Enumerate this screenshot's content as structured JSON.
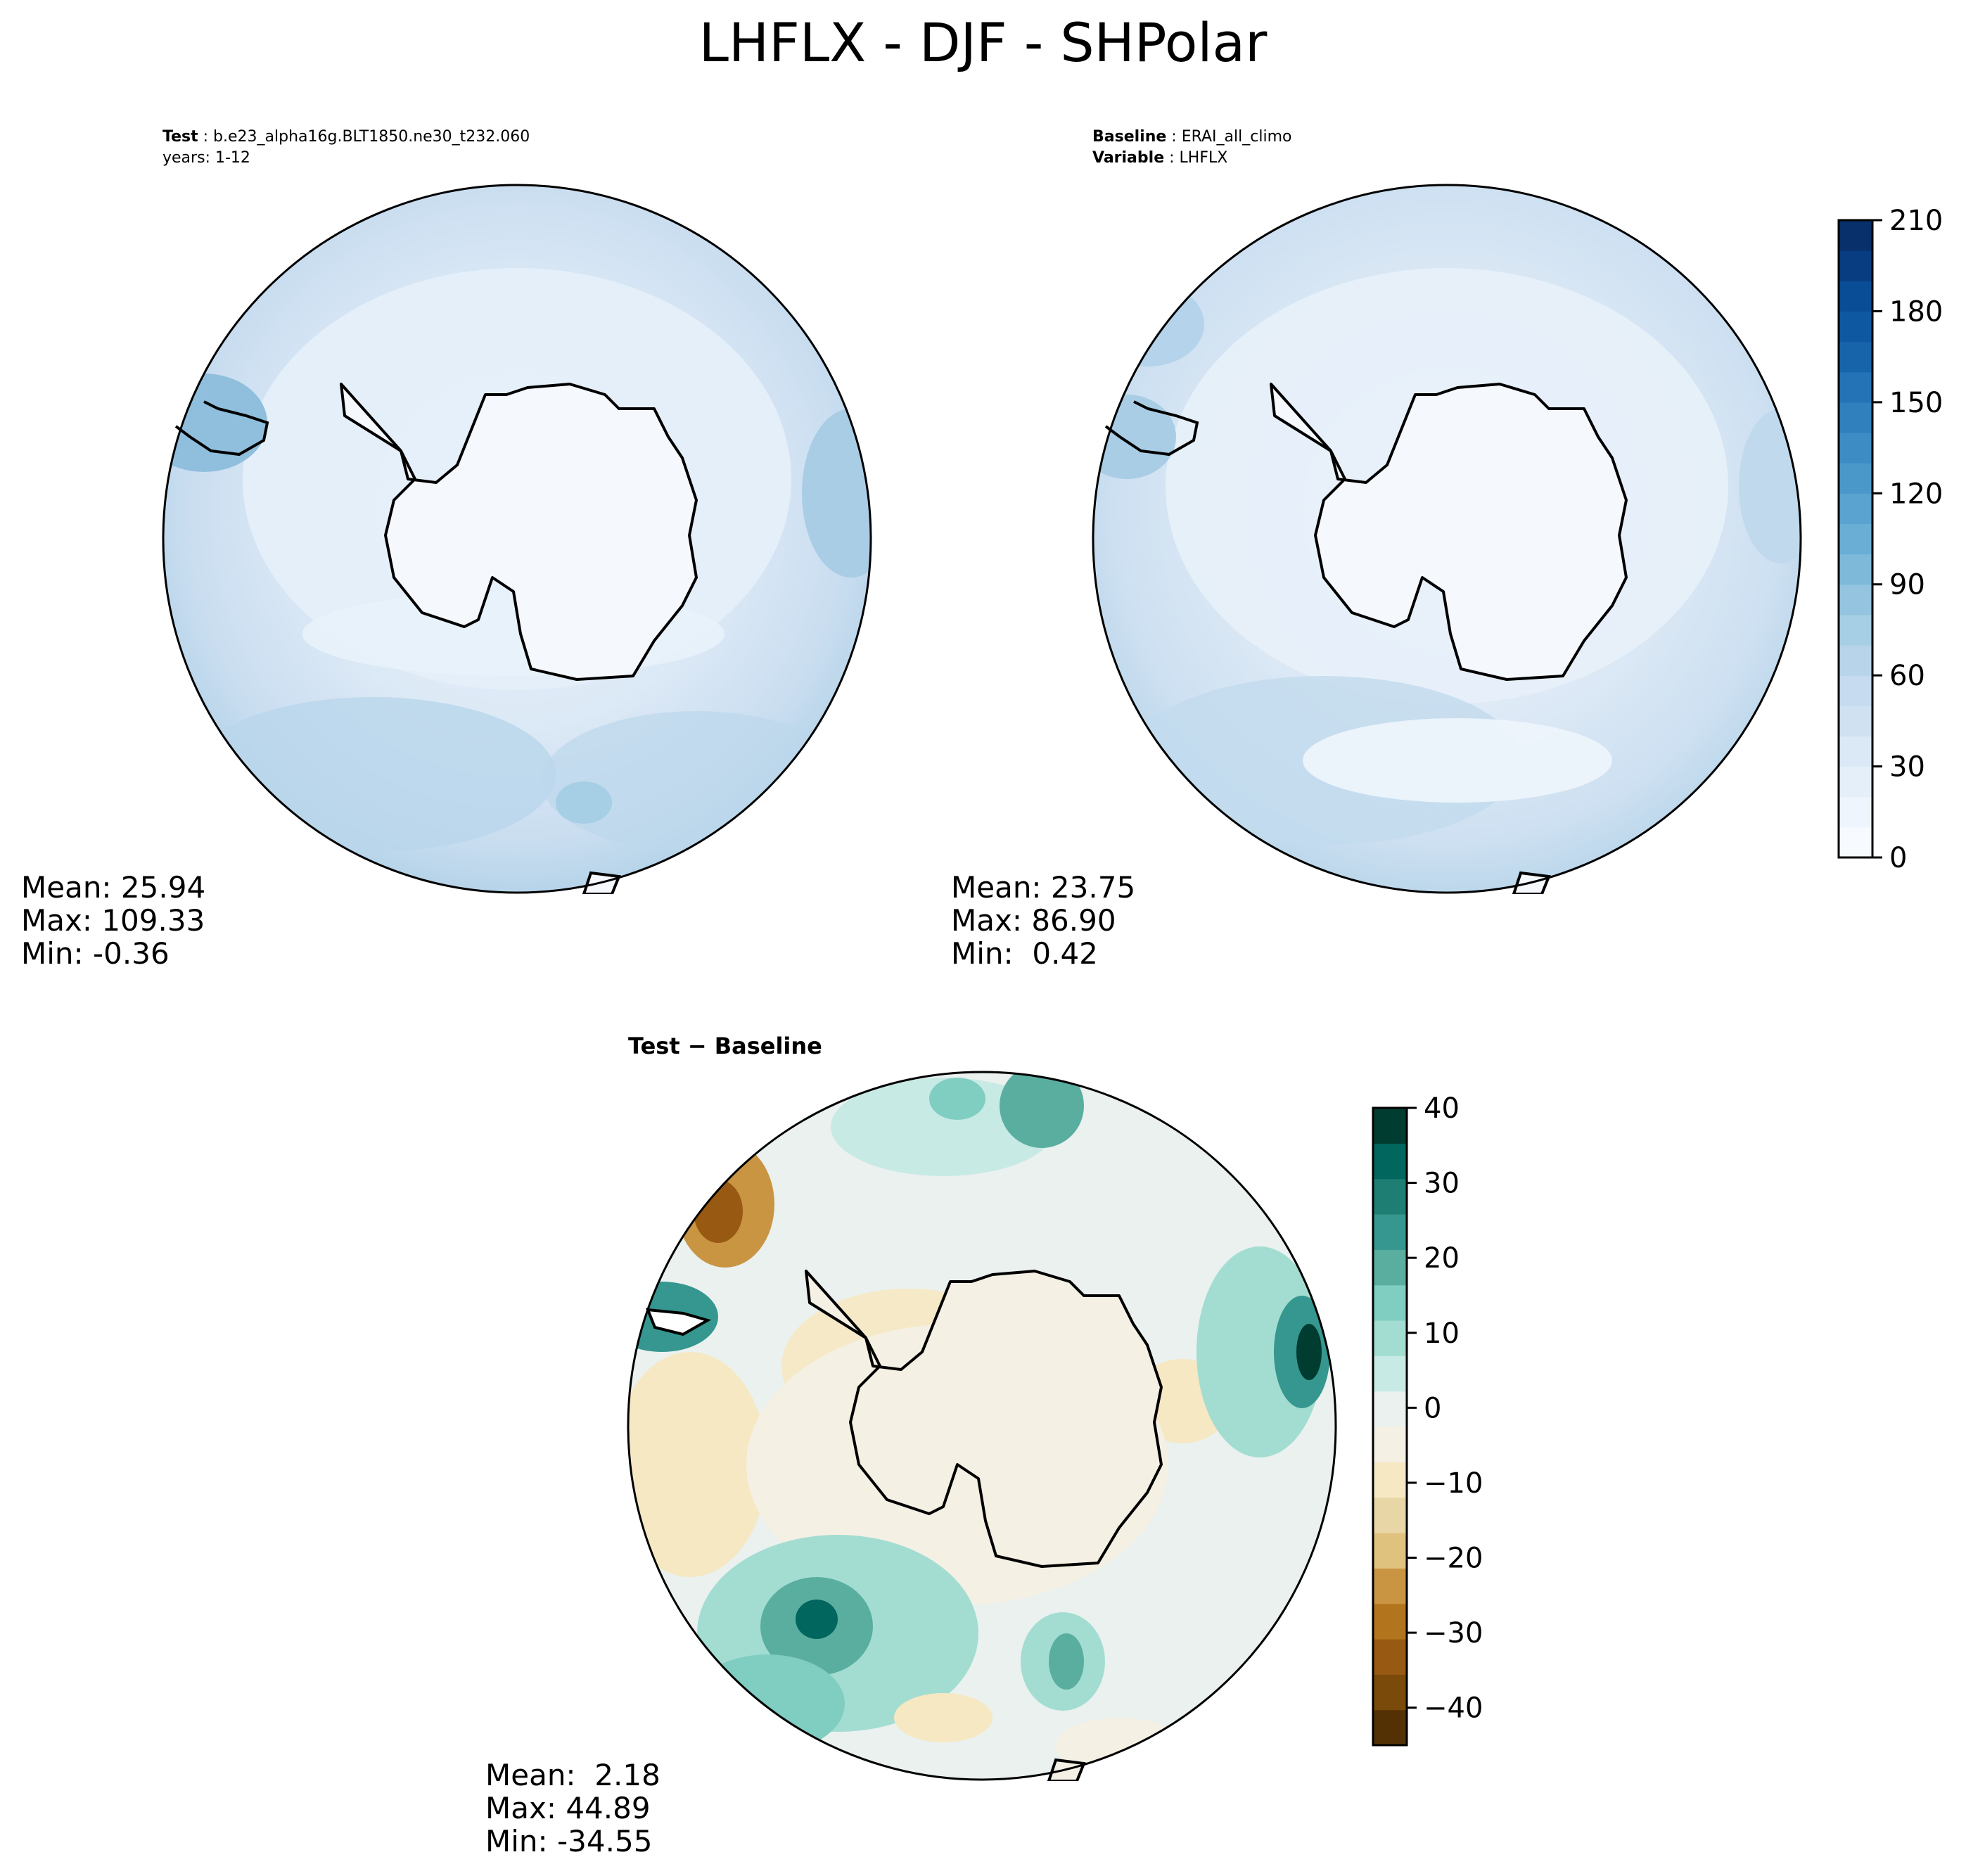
{
  "figure": {
    "title": "LHFLX - DJF - SHPolar"
  },
  "panels": {
    "test": {
      "label_bold": "Test",
      "label_value": "b.e23_alpha16g.BLT1850.ne30_t232.060",
      "years": "years: 1-12",
      "stats": {
        "mean": "Mean: 25.94",
        "max": "Max: 109.33",
        "min": "Min: -0.36"
      }
    },
    "baseline": {
      "label_bold": "Baseline",
      "label_value": "ERAI_all_climo",
      "variable_bold": "Variable",
      "variable_value": "LHFLX",
      "stats": {
        "mean": "Mean: 23.75",
        "max": "Max: 86.90",
        "min": "Min:  0.42"
      }
    },
    "difference": {
      "title": "Test − Baseline",
      "stats": {
        "mean": "Mean:  2.18",
        "max": "Max: 44.89",
        "min": "Min: -34.55"
      }
    }
  },
  "colorbars": {
    "field": {
      "colormap": "Blues",
      "ticks": [
        "0",
        "30",
        "60",
        "90",
        "120",
        "150",
        "180",
        "210"
      ],
      "tick_values": [
        0,
        30,
        60,
        90,
        120,
        150,
        180,
        210
      ],
      "range": [
        0,
        210
      ],
      "levels": 21,
      "colors": [
        "#f7fbff",
        "#eef5fc",
        "#e4eff9",
        "#dbe9f6",
        "#d0e1f2",
        "#c6dbef",
        "#b7d4ea",
        "#a6cee4",
        "#94c4df",
        "#7fb9da",
        "#6aaed6",
        "#5aa2cf",
        "#4a98c9",
        "#3d8dc4",
        "#3080bd",
        "#2373b6",
        "#1764ab",
        "#0e58a2",
        "#084d96",
        "#083e81",
        "#08306b"
      ]
    },
    "difference": {
      "colormap": "BrBG",
      "ticks": [
        "40",
        "30",
        "20",
        "10",
        "0",
        "−10",
        "−20",
        "−30",
        "−40"
      ],
      "tick_values": [
        40,
        30,
        20,
        10,
        0,
        -10,
        -20,
        -30,
        -40
      ],
      "range": [
        -45,
        40
      ],
      "colors_bottom_to_top": [
        "#543005",
        "#7a4a0a",
        "#985a12",
        "#b2741c",
        "#c99542",
        "#dfc27d",
        "#e9d6a6",
        "#f6e8c3",
        "#f5f0e4",
        "#eaf1ef",
        "#c7eae5",
        "#a3ddd2",
        "#80cdc1",
        "#5aae9f",
        "#35978f",
        "#1f7e74",
        "#01665e",
        "#003c30"
      ]
    }
  },
  "map_colors": {
    "land": "#f5f9fe",
    "coastline": "#000000"
  }
}
